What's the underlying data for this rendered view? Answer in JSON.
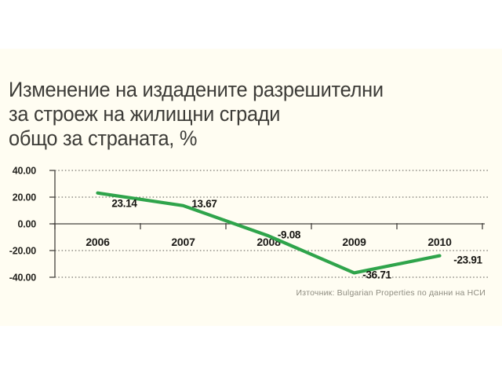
{
  "title": {
    "line1": "Изменение на издадените разрешителни",
    "line2": "за строеж на жилищни сгради",
    "line3": "общо за страната, %"
  },
  "chart_data": {
    "type": "line",
    "categories": [
      "2006",
      "2007",
      "2008",
      "2009",
      "2010"
    ],
    "values": [
      23.14,
      13.67,
      -9.08,
      -36.71,
      -23.91
    ],
    "point_labels": [
      "23.14",
      "13.67",
      "-9.08",
      "-36.71",
      "-23.91"
    ],
    "y_ticks": [
      40,
      20,
      0,
      -20,
      -40
    ],
    "y_tick_labels": [
      "40.00",
      "20.00",
      "0.00",
      "-20.00",
      "-40.00"
    ],
    "ylim": [
      -40,
      40
    ],
    "xlabel": "",
    "ylabel": "",
    "legend": "none",
    "grid": "horizontal dotted, solid zero baseline",
    "line_color": "#2FA44B"
  },
  "source": {
    "text": "Източник: Bulgarian Properties по данни на НСИ"
  },
  "colors": {
    "paper": "#FFFDF2",
    "page_margin": "#FFFFFF",
    "title_text": "#3D3C38",
    "axis": "#44423E",
    "label_text": "#14130F",
    "source_text": "#8E8C80",
    "line": "#2FA44B"
  }
}
